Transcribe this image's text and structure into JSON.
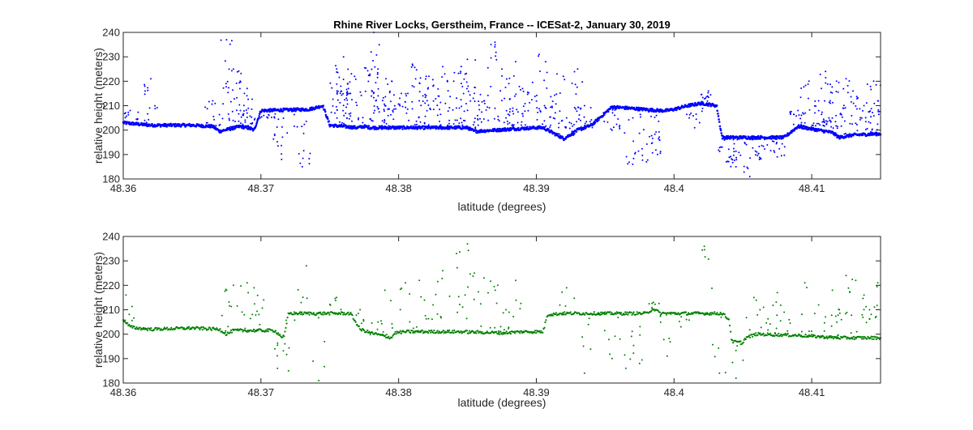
{
  "chart_data": [
    {
      "type": "scatter",
      "title": "Rhine River Locks, Gerstheim, France -- ICESat-2, January 30, 2019",
      "xlabel": "latitude (degrees)",
      "ylabel": "relative height (meters)",
      "xlim": [
        48.36,
        48.415
      ],
      "ylim": [
        180,
        240
      ],
      "xticks": [
        "48.36",
        "48.37",
        "48.38",
        "48.39",
        "48.4",
        "48.41"
      ],
      "yticks": [
        "180",
        "190",
        "200",
        "210",
        "220",
        "230",
        "240"
      ],
      "grid": false,
      "color": "#0000ff",
      "surface_profile": {
        "x": [
          48.36,
          48.362,
          48.365,
          48.3665,
          48.367,
          48.3685,
          48.369,
          48.3695,
          48.37,
          48.3735,
          48.3745,
          48.375,
          48.377,
          48.3775,
          48.378,
          48.385,
          48.3855,
          48.39,
          48.3905,
          48.392,
          48.393,
          48.394,
          48.3955,
          48.399,
          48.3995,
          48.4,
          48.401,
          48.402,
          48.4031,
          48.4033,
          48.4035,
          48.408,
          48.409,
          48.4115,
          48.412,
          48.413,
          48.415
        ],
        "y": [
          203,
          202,
          202,
          201.5,
          199.5,
          201.5,
          201,
          200,
          208,
          208.5,
          210,
          202,
          201,
          201.5,
          201,
          201,
          199.5,
          201,
          201,
          196.5,
          200,
          202,
          209.5,
          208,
          208,
          208.5,
          210,
          211,
          210,
          203,
          197,
          197,
          201.5,
          199,
          197,
          198,
          198.5
        ]
      },
      "scatter_points": {
        "x": [
          48.3605,
          48.362,
          48.3665,
          48.3675,
          48.368,
          48.3685,
          48.3688,
          48.369,
          48.3705,
          48.3715,
          48.373,
          48.3755,
          48.3758,
          48.376,
          48.3765,
          48.3768,
          48.378,
          48.3782,
          48.3785,
          48.379,
          48.3795,
          48.3802,
          48.381,
          48.3815,
          48.382,
          48.3825,
          48.3832,
          48.384,
          48.3845,
          48.385,
          48.3855,
          48.3862,
          48.387,
          48.3875,
          48.3878,
          48.3885,
          48.389,
          48.3902,
          48.3906,
          48.3915,
          48.3922,
          48.393,
          48.3935,
          48.3955,
          48.397,
          48.398,
          48.3988,
          48.4015,
          48.4025,
          48.4038,
          48.4045,
          48.4055,
          48.4062,
          48.4075,
          48.409,
          48.4098,
          48.4105,
          48.411,
          48.4113,
          48.4118,
          48.4125,
          48.413,
          48.4138,
          48.4145,
          48.4148
        ],
        "y": [
          208,
          221,
          212,
          237,
          225,
          220,
          215,
          207,
          205,
          188,
          185,
          225,
          218,
          230,
          215,
          222,
          232,
          240,
          225,
          210,
          220,
          215,
          227,
          212,
          222,
          218,
          226,
          220,
          224,
          229,
          215,
          212,
          236,
          225,
          205,
          228,
          217,
          231,
          210,
          223,
          205,
          225,
          210,
          200,
          186,
          187,
          190,
          201,
          216,
          187,
          185,
          181,
          188,
          189,
          208,
          220,
          212,
          224,
          204,
          220,
          221,
          216,
          210,
          220,
          212
        ]
      }
    },
    {
      "type": "scatter",
      "title": "",
      "xlabel": "latitude (degrees)",
      "ylabel": "relative height (meters)",
      "xlim": [
        48.36,
        48.415
      ],
      "ylim": [
        180,
        240
      ],
      "xticks": [
        "48.36",
        "48.37",
        "48.38",
        "48.39",
        "48.4",
        "48.41"
      ],
      "yticks": [
        "180",
        "190",
        "200",
        "210",
        "220",
        "230",
        "240"
      ],
      "grid": false,
      "color": "#008000",
      "surface_profile": {
        "x": [
          48.36,
          48.3605,
          48.361,
          48.362,
          48.365,
          48.367,
          48.3675,
          48.368,
          48.371,
          48.3715,
          48.3717,
          48.372,
          48.3765,
          48.3772,
          48.378,
          48.3795,
          48.3797,
          48.3805,
          48.384,
          48.3845,
          48.3875,
          48.389,
          48.3905,
          48.3908,
          48.392,
          48.398,
          48.3985,
          48.399,
          48.4035,
          48.404,
          48.4042,
          48.405,
          48.4052,
          48.406,
          48.409,
          48.412,
          48.415
        ],
        "y": [
          206,
          203,
          202.5,
          202,
          202.5,
          202,
          200,
          201.5,
          201.5,
          199,
          199,
          208.5,
          208.5,
          202,
          200.5,
          198.5,
          200.5,
          201,
          201,
          201,
          200.5,
          201,
          201,
          208,
          208.5,
          208.5,
          210.5,
          208.5,
          208.5,
          206,
          197,
          196.5,
          198.5,
          200,
          199.5,
          198.5,
          198.5
        ]
      },
      "scatter_points": {
        "x": [
          48.3602,
          48.3675,
          48.368,
          48.369,
          48.3695,
          48.3702,
          48.3712,
          48.372,
          48.3733,
          48.3742,
          48.3755,
          48.3772,
          48.3785,
          48.379,
          48.3805,
          48.3815,
          48.3825,
          48.3832,
          48.3842,
          48.385,
          48.3855,
          48.3862,
          48.3872,
          48.3878,
          48.3885,
          48.3922,
          48.3935,
          48.3945,
          48.3955,
          48.3965,
          48.3975,
          48.3985,
          48.3995,
          48.4005,
          48.4022,
          48.4033,
          48.4045,
          48.4058,
          48.4065,
          48.4075,
          48.408,
          48.4095,
          48.4105,
          48.4115,
          48.412,
          48.4125,
          48.4132,
          48.4138,
          48.4142,
          48.4148
        ],
        "y": [
          216,
          218,
          220,
          221,
          219,
          214,
          186,
          185,
          228,
          181,
          215,
          210,
          205,
          218,
          221,
          222,
          212,
          226,
          233,
          237,
          225,
          223,
          220,
          210,
          222,
          219,
          184,
          208,
          190,
          186,
          188,
          213,
          191,
          203,
          236,
          184,
          182,
          215,
          211,
          217,
          209,
          221,
          212,
          218,
          210,
          224,
          222,
          216,
          210,
          221
        ]
      }
    }
  ]
}
